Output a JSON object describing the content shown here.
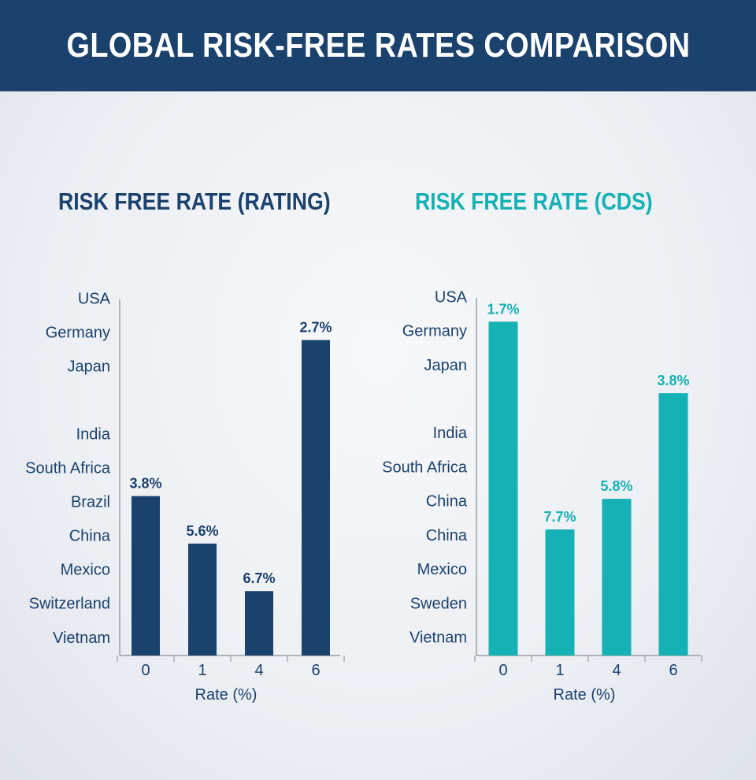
{
  "header": {
    "title": "GLOBAL RISK-FREE RATES COMPARISON"
  },
  "colors": {
    "header_bg": "#1b416d",
    "navy": "#1b416d",
    "teal": "#16b1b4",
    "axis": "#9aa0a8"
  },
  "chart_data": [
    {
      "type": "bar",
      "title": "RISK FREE RATE (RATING)",
      "color": "#1b416d",
      "categories": [
        "0",
        "1",
        "4",
        "6"
      ],
      "values": [
        3.8,
        5.6,
        6.7,
        2.7
      ],
      "value_labels": [
        "3.8%",
        "5.6%",
        "6.7%",
        "2.7%"
      ],
      "bar_tops": [
        4.7,
        3.3,
        1.9,
        9.3
      ],
      "y_tick_labels": [
        "USA",
        "Germany",
        "Japan",
        "India",
        "South Africa",
        "Brazil",
        "China",
        "Mexico",
        "Switzerland",
        "Vietnam"
      ],
      "y_tick_values": [
        10.5,
        9.5,
        8.5,
        6.5,
        5.5,
        4.5,
        3.5,
        2.5,
        1.5,
        0.5
      ],
      "ylim": [
        0,
        10.5
      ],
      "xlabel": "Rate (%)",
      "ylabel": "",
      "grid": false
    },
    {
      "type": "bar",
      "title": "RISK FREE RATE (CDS)",
      "color": "#16b1b4",
      "categories": [
        "0",
        "1",
        "4",
        "6"
      ],
      "values": [
        1.7,
        7.7,
        5.8,
        3.8
      ],
      "value_labels": [
        "1.7%",
        "7.7%",
        "5.8%",
        "3.8%"
      ],
      "bar_tops": [
        9.8,
        3.7,
        4.6,
        7.7
      ],
      "y_tick_labels": [
        "USA",
        "Germany",
        "Japan",
        "India",
        "South Africa",
        "China",
        "China",
        "Mexico",
        "Sweden",
        "Vietnam"
      ],
      "y_tick_values": [
        10.5,
        9.5,
        8.5,
        6.5,
        5.5,
        4.5,
        3.5,
        2.5,
        1.5,
        0.5
      ],
      "ylim": [
        0,
        10.5
      ],
      "xlabel": "Rate (%)",
      "ylabel": "",
      "grid": false
    }
  ]
}
